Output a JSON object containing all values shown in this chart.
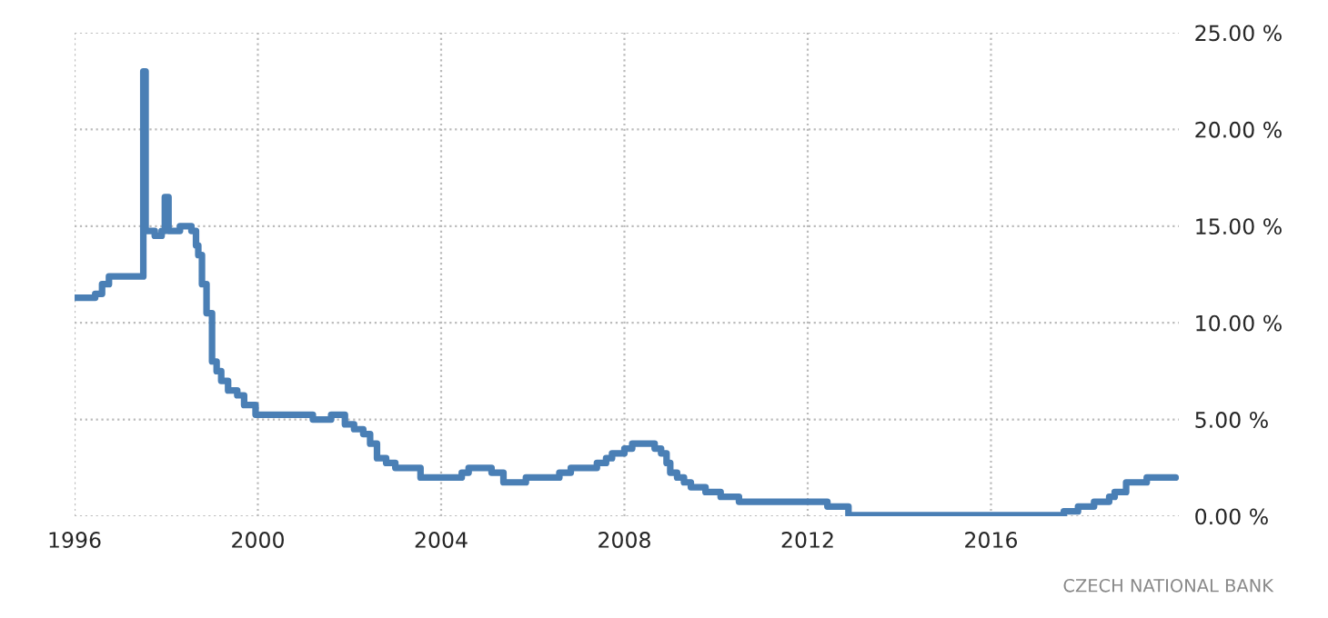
{
  "chart_data": {
    "type": "step",
    "x": [
      1996.0,
      1996.45,
      1996.6,
      1996.75,
      1997.5,
      1997.55,
      1997.75,
      1997.9,
      1997.97,
      1998.05,
      1998.3,
      1998.55,
      1998.65,
      1998.7,
      1998.78,
      1998.88,
      1999.0,
      1999.1,
      1999.2,
      1999.35,
      1999.55,
      1999.7,
      1999.95,
      2001.2,
      2001.6,
      2001.9,
      2002.1,
      2002.3,
      2002.45,
      2002.6,
      2002.8,
      2003.0,
      2003.55,
      2004.45,
      2004.6,
      2005.1,
      2005.36,
      2005.85,
      2006.58,
      2006.83,
      2007.4,
      2007.6,
      2007.73,
      2008.0,
      2008.17,
      2008.66,
      2008.8,
      2008.92,
      2009.0,
      2009.15,
      2009.3,
      2009.45,
      2009.77,
      2010.1,
      2010.5,
      2012.43,
      2012.89,
      2017.59,
      2017.9,
      2018.25,
      2018.58,
      2018.7,
      2018.95,
      2019.4,
      2020.03
    ],
    "series": [
      {
        "color": "#4a7fb5",
        "values": [
          11.3,
          11.5,
          12.0,
          12.4,
          23.0,
          14.75,
          14.5,
          14.75,
          16.5,
          14.75,
          15.0,
          14.75,
          14.0,
          13.5,
          12.0,
          10.5,
          8.0,
          7.5,
          7.0,
          6.5,
          6.25,
          5.75,
          5.25,
          5.0,
          5.25,
          4.75,
          4.5,
          4.25,
          3.75,
          3.0,
          2.75,
          2.5,
          2.0,
          2.25,
          2.5,
          2.25,
          1.75,
          2.0,
          2.25,
          2.5,
          2.75,
          3.0,
          3.25,
          3.5,
          3.75,
          3.5,
          3.25,
          2.75,
          2.25,
          2.0,
          1.75,
          1.5,
          1.25,
          1.0,
          0.75,
          0.5,
          0.05,
          0.25,
          0.5,
          0.75,
          1.0,
          1.25,
          1.75,
          2.0,
          2.0
        ]
      }
    ],
    "xlim": [
      1996,
      2020.1
    ],
    "xticks": [
      1996,
      2000,
      2004,
      2008,
      2012,
      2016
    ],
    "ylim": [
      0,
      25
    ],
    "yticks": [
      {
        "value": 0,
        "label": "0.00 %"
      },
      {
        "value": 5,
        "label": "5.00 %"
      },
      {
        "value": 10,
        "label": "10.00 %"
      },
      {
        "value": 15,
        "label": "15.00 %"
      },
      {
        "value": 20,
        "label": "20.00 %"
      },
      {
        "value": 25,
        "label": "25.00 %"
      }
    ],
    "grid": true,
    "line_style": "solid",
    "marker": "none",
    "annotations": [
      "CZECH NATIONAL BANK"
    ]
  }
}
